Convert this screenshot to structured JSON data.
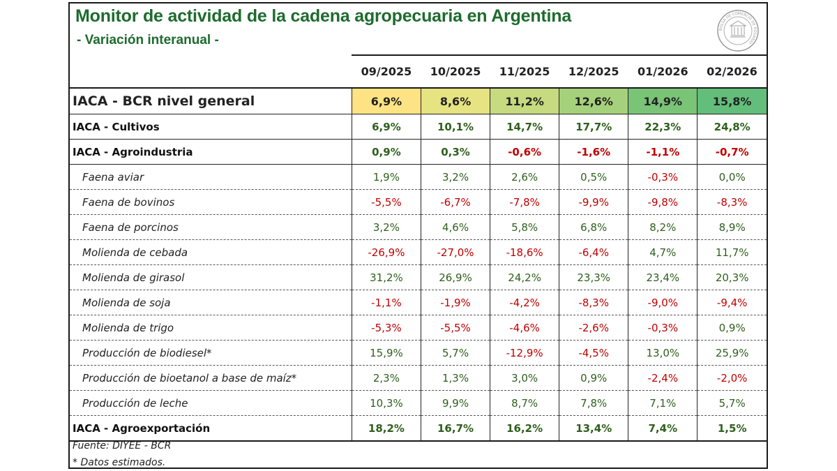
{
  "header": {
    "title": "Monitor de actividad de la cadena agropecuaria en Argentina",
    "subtitle": "- Variación interanual -",
    "seal_text": "BOLSA DE COMERCIO DE ROSARIO"
  },
  "columns": [
    "09/2025",
    "10/2025",
    "11/2025",
    "12/2025",
    "01/2026",
    "02/2026"
  ],
  "general_row": {
    "label": "IACA - BCR nivel general",
    "values": [
      "6,9%",
      "8,6%",
      "11,2%",
      "12,6%",
      "14,9%",
      "15,8%"
    ],
    "colors": [
      "#fde383",
      "#e6e382",
      "#c6da7f",
      "#a6d17c",
      "#79c477",
      "#63be7b"
    ]
  },
  "rows": [
    {
      "kind": "main",
      "label": "IACA - Cultivos",
      "values": [
        "6,9%",
        "10,1%",
        "14,7%",
        "17,7%",
        "22,3%",
        "24,8%"
      ]
    },
    {
      "kind": "main",
      "label": "IACA - Agroindustria",
      "values": [
        "0,9%",
        "0,3%",
        "-0,6%",
        "-1,6%",
        "-1,1%",
        "-0,7%"
      ]
    },
    {
      "kind": "sub",
      "label": "Faena aviar",
      "values": [
        "1,9%",
        "3,2%",
        "2,6%",
        "0,5%",
        "-0,3%",
        "0,0%"
      ]
    },
    {
      "kind": "sub",
      "label": "Faena de bovinos",
      "values": [
        "-5,5%",
        "-6,7%",
        "-7,8%",
        "-9,9%",
        "-9,8%",
        "-8,3%"
      ]
    },
    {
      "kind": "sub",
      "label": "Faena de porcinos",
      "values": [
        "3,2%",
        "4,6%",
        "5,8%",
        "6,8%",
        "8,2%",
        "8,9%"
      ]
    },
    {
      "kind": "sub",
      "label": "Molienda de cebada",
      "values": [
        "-26,9%",
        "-27,0%",
        "-18,6%",
        "-6,4%",
        "4,7%",
        "11,7%"
      ]
    },
    {
      "kind": "sub",
      "label": "Molienda de girasol",
      "values": [
        "31,2%",
        "26,9%",
        "24,2%",
        "23,3%",
        "23,4%",
        "20,3%"
      ]
    },
    {
      "kind": "sub",
      "label": "Molienda de soja",
      "values": [
        "-1,1%",
        "-1,9%",
        "-4,2%",
        "-8,3%",
        "-9,0%",
        "-9,4%"
      ]
    },
    {
      "kind": "sub",
      "label": "Molienda de trigo",
      "values": [
        "-5,3%",
        "-5,5%",
        "-4,6%",
        "-2,6%",
        "-0,3%",
        "0,9%"
      ]
    },
    {
      "kind": "sub",
      "label": "Producción de biodiesel*",
      "values": [
        "15,9%",
        "5,7%",
        "-12,9%",
        "-4,5%",
        "13,0%",
        "25,9%"
      ]
    },
    {
      "kind": "sub",
      "label": "Producción de bioetanol a base de maíz*",
      "values": [
        "2,3%",
        "1,3%",
        "3,0%",
        "0,9%",
        "-2,4%",
        "-2,0%"
      ]
    },
    {
      "kind": "sub",
      "label": "Producción de leche",
      "values": [
        "10,3%",
        "9,9%",
        "8,7%",
        "7,8%",
        "7,1%",
        "5,7%"
      ]
    },
    {
      "kind": "main",
      "label": "IACA - Agroexportación",
      "values": [
        "18,2%",
        "16,7%",
        "16,2%",
        "13,4%",
        "7,4%",
        "1,5%"
      ]
    }
  ],
  "footer": {
    "source": "Fuente: DIYEE - BCR",
    "note": "* Datos estimados."
  },
  "colors": {
    "title": "#1e6b2e",
    "positive": "#2e5f1c",
    "negative": "#c00000"
  }
}
